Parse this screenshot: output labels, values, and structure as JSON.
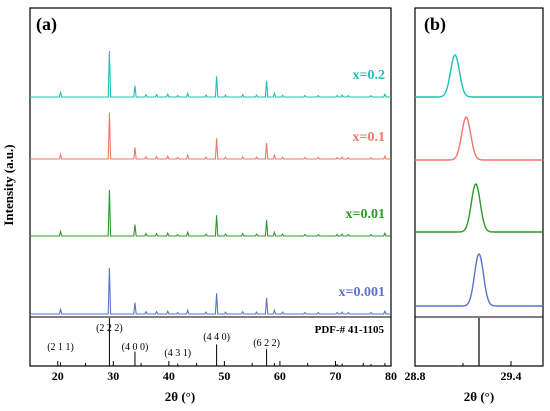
{
  "chart_data": [
    {
      "type": "line",
      "panel_label": "(a)",
      "xlabel": "2θ (°)",
      "ylabel": "Intensity (a.u.)",
      "xlim": [
        15,
        80
      ],
      "xticks": [
        20,
        30,
        40,
        50,
        60,
        70,
        80
      ],
      "series": [
        {
          "name": "x=0.2",
          "color": "#1fbfb4",
          "offset": 4
        },
        {
          "name": "x=0.1",
          "color": "#f0766a",
          "offset": 3
        },
        {
          "name": "x=0.01",
          "color": "#2a9a2a",
          "offset": 2
        },
        {
          "name": "x=0.001",
          "color": "#5a72c8",
          "offset": 1
        }
      ],
      "peaks": [
        {
          "x": 20.5,
          "h": 0.1
        },
        {
          "x": 29.3,
          "h": 1.0
        },
        {
          "x": 33.9,
          "h": 0.25
        },
        {
          "x": 35.9,
          "h": 0.05
        },
        {
          "x": 37.8,
          "h": 0.05
        },
        {
          "x": 39.8,
          "h": 0.06
        },
        {
          "x": 41.6,
          "h": 0.03
        },
        {
          "x": 43.4,
          "h": 0.08
        },
        {
          "x": 46.7,
          "h": 0.04
        },
        {
          "x": 48.6,
          "h": 0.45
        },
        {
          "x": 50.2,
          "h": 0.04
        },
        {
          "x": 53.3,
          "h": 0.05
        },
        {
          "x": 55.8,
          "h": 0.04
        },
        {
          "x": 57.6,
          "h": 0.35
        },
        {
          "x": 59.0,
          "h": 0.08
        },
        {
          "x": 60.5,
          "h": 0.04
        },
        {
          "x": 64.5,
          "h": 0.03
        },
        {
          "x": 66.9,
          "h": 0.03
        },
        {
          "x": 70.3,
          "h": 0.03
        },
        {
          "x": 71.2,
          "h": 0.04
        },
        {
          "x": 72.3,
          "h": 0.03
        },
        {
          "x": 76.4,
          "h": 0.03
        },
        {
          "x": 78.9,
          "h": 0.06
        }
      ],
      "reference": {
        "label": "PDF-# 41-1105",
        "lines": [
          {
            "x": 20.5,
            "h": 0.08
          },
          {
            "x": 29.3,
            "h": 1.0
          },
          {
            "x": 33.9,
            "h": 0.3
          },
          {
            "x": 41.6,
            "h": 0.05
          },
          {
            "x": 48.6,
            "h": 0.45
          },
          {
            "x": 57.6,
            "h": 0.35
          },
          {
            "x": 59.0,
            "h": 0.06
          },
          {
            "x": 70.3,
            "h": 0.04
          },
          {
            "x": 71.2,
            "h": 0.05
          },
          {
            "x": 76.4,
            "h": 0.04
          },
          {
            "x": 78.9,
            "h": 0.06
          }
        ],
        "hkl_labels": [
          {
            "text": "(2 1 1)",
            "x": 20.5
          },
          {
            "text": "(2 2 2)",
            "x": 29.3
          },
          {
            "text": "(4 0 0)",
            "x": 33.9
          },
          {
            "text": "(4 3 1)",
            "x": 41.6
          },
          {
            "text": "(4 4 0)",
            "x": 48.6
          },
          {
            "text": "(6 2 2)",
            "x": 57.6
          }
        ]
      }
    },
    {
      "type": "line",
      "panel_label": "(b)",
      "xlabel": "2θ (°)",
      "xlim": [
        28.8,
        29.6
      ],
      "xticks": [
        28.8,
        29.4
      ],
      "peak_centers": [
        {
          "name": "x=0.2",
          "center": 29.05
        },
        {
          "name": "x=0.1",
          "center": 29.12
        },
        {
          "name": "x=0.01",
          "center": 29.18
        },
        {
          "name": "x=0.001",
          "center": 29.2
        }
      ],
      "reference_line_x": 29.2
    }
  ]
}
